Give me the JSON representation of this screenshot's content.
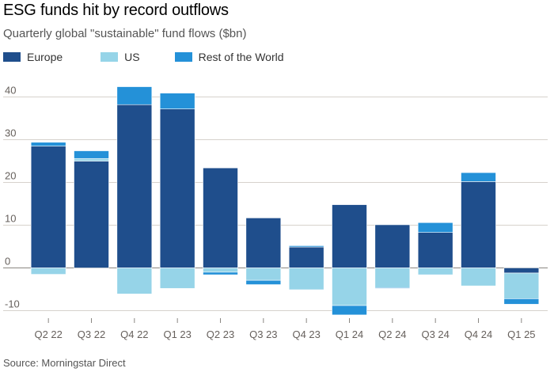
{
  "title": "ESG funds hit by record outflows",
  "subtitle": "Quarterly global \"sustainable\" fund flows ($bn)",
  "source": "Source: Morningstar Direct",
  "colors": {
    "Europe": "#1f4e8c",
    "US": "#96d4e8",
    "Rest of the World": "#2491d8",
    "grid": "#d6d2cc",
    "zero": "#8a8782"
  },
  "legend": [
    "Europe",
    "US",
    "Rest of the World"
  ],
  "chart_data": {
    "type": "bar",
    "stacked": true,
    "title": "ESG funds hit by record outflows",
    "subtitle": "Quarterly global \"sustainable\" fund flows ($bn)",
    "xlabel": "",
    "ylabel": "",
    "categories": [
      "Q2 22",
      "Q3 22",
      "Q4 22",
      "Q1 23",
      "Q2 23",
      "Q3 23",
      "Q4 23",
      "Q1 24",
      "Q2 24",
      "Q3 24",
      "Q4 24",
      "Q1 25"
    ],
    "series": [
      {
        "name": "Europe",
        "values": [
          28.5,
          25.0,
          38.2,
          37.2,
          23.4,
          11.7,
          4.9,
          14.8,
          10.1,
          8.3,
          20.2,
          -1.2
        ]
      },
      {
        "name": "US",
        "values": [
          -1.5,
          0.6,
          -6.1,
          -4.8,
          -1.0,
          -2.9,
          -5.1,
          -8.8,
          -4.6,
          -1.6,
          -4.2,
          -6.0
        ]
      },
      {
        "name": "Rest of the World",
        "values": [
          0.9,
          1.8,
          4.2,
          3.7,
          -0.6,
          -1.0,
          0.3,
          -2.2,
          -0.2,
          2.3,
          2.1,
          -1.3
        ]
      }
    ],
    "yticks": [
      -10,
      0,
      10,
      20,
      30,
      40
    ],
    "ylim": [
      -11,
      44
    ],
    "grid": true,
    "legend_position": "top-left"
  }
}
